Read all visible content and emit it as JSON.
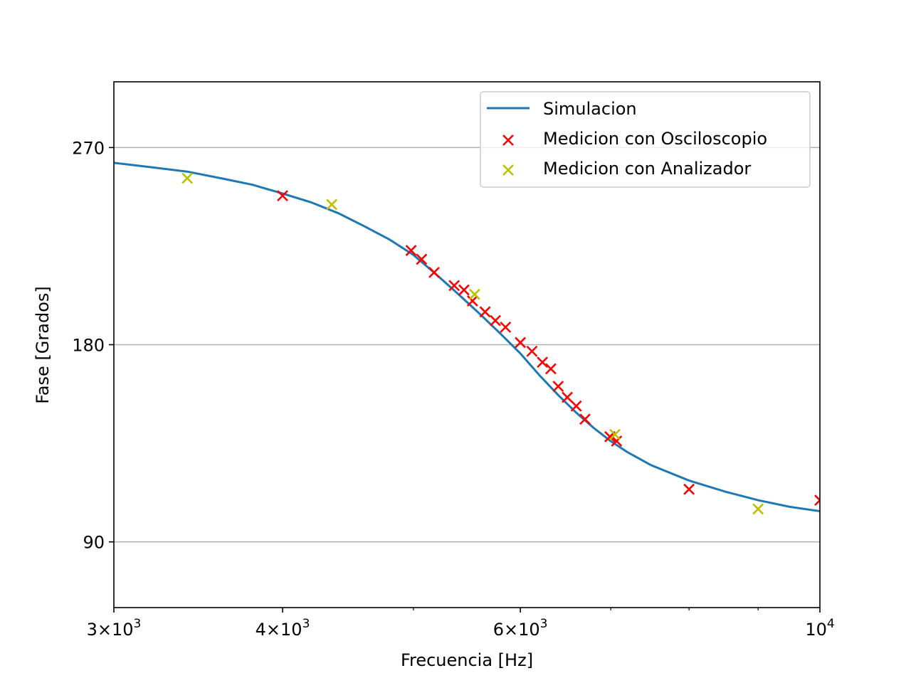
{
  "chart_data": {
    "type": "scatter",
    "xlabel": "Frecuencia [Hz]",
    "ylabel": "Fase [Grados]",
    "xscale": "log",
    "xlim": [
      3000,
      10000
    ],
    "ylim": [
      60,
      300
    ],
    "x_ticks": [
      {
        "value": 3000,
        "mantissa": "3",
        "exponent": "3"
      },
      {
        "value": 4000,
        "mantissa": "4",
        "exponent": "3"
      },
      {
        "value": 6000,
        "mantissa": "6",
        "exponent": "3"
      },
      {
        "value": 10000,
        "mantissa": "",
        "exponent": "4"
      }
    ],
    "x_minor_ticks": [
      5000,
      7000,
      8000,
      9000
    ],
    "y_ticks": [
      90,
      180,
      270
    ],
    "grid": "horizontal",
    "legend_position": "top-right",
    "colors": {
      "simulation": "#1f77b4",
      "oscilloscope": "#ff0000",
      "analyzer": "#bfbf00"
    },
    "series": [
      {
        "name": "Simulacion",
        "kind": "line",
        "x": [
          3000,
          3200,
          3400,
          3600,
          3800,
          4000,
          4200,
          4400,
          4600,
          4800,
          5000,
          5200,
          5400,
          5600,
          5800,
          6000,
          6200,
          6400,
          6600,
          6800,
          7000,
          7200,
          7500,
          8000,
          8500,
          9000,
          9500,
          10000
        ],
        "y": [
          263,
          261,
          259,
          256,
          253,
          249,
          245,
          240,
          234,
          228,
          221,
          212,
          203,
          194,
          185,
          176,
          166,
          157,
          149,
          142,
          136,
          131,
          125,
          118,
          113,
          109,
          106,
          104
        ]
      },
      {
        "name": "Medicion con Osciloscopio",
        "kind": "scatter",
        "marker": "x",
        "x": [
          4000,
          4980,
          5070,
          5180,
          5360,
          5450,
          5530,
          5650,
          5750,
          5850,
          6000,
          6120,
          6230,
          6320,
          6400,
          6500,
          6600,
          6700,
          6990,
          7070,
          8000,
          10000
        ],
        "y": [
          248,
          223,
          219,
          213,
          207,
          205,
          200,
          195,
          191,
          188,
          181,
          177,
          172,
          169,
          161,
          156,
          152,
          146,
          138,
          136,
          114,
          109
        ]
      },
      {
        "name": "Medicion con Analizador",
        "kind": "scatter",
        "marker": "x",
        "x": [
          3400,
          4350,
          5550,
          7050,
          9000
        ],
        "y": [
          256,
          244,
          203,
          139,
          105
        ]
      }
    ]
  }
}
